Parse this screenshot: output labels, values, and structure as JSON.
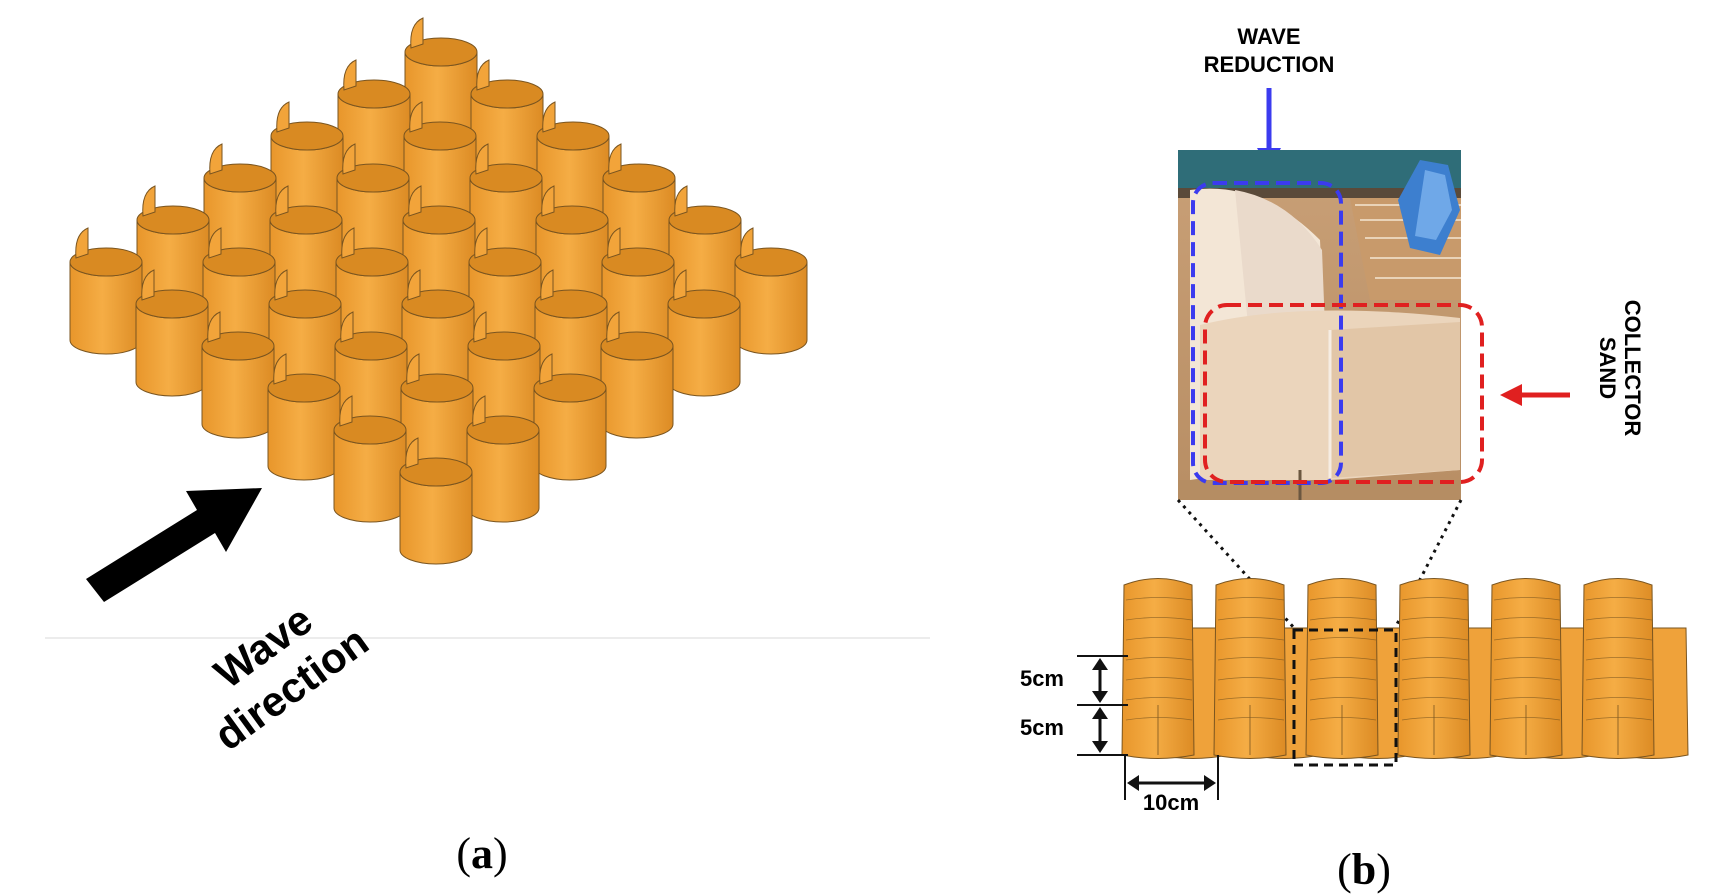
{
  "panel_a": {
    "arrow_label_line1": "Wave",
    "arrow_label_line2": "direction",
    "caption_open": "(",
    "caption_letter": "a",
    "caption_close": ")"
  },
  "panel_b": {
    "wave_reduction_line1": "WAVE",
    "wave_reduction_line2": "REDUCTION",
    "sand_collector_line1": "SAND",
    "sand_collector_line2": "COLLECTOR",
    "dim_height_1": "5cm",
    "dim_height_2": "5cm",
    "dim_width": "10cm",
    "caption_open": "(",
    "caption_letter": "b",
    "caption_close": ")"
  },
  "colors": {
    "module_fill": "#F2A43A",
    "module_shade": "#D98A22",
    "module_edge": "#7A5520",
    "wave_reduction_box": "#3B3BEF",
    "sand_collector_box": "#E02020",
    "arrow": "#000000"
  },
  "icons": {
    "wave_arrow": "arrow-up-right-icon",
    "blue_pointer": "arrow-down-icon",
    "red_pointer": "arrow-left-icon"
  }
}
